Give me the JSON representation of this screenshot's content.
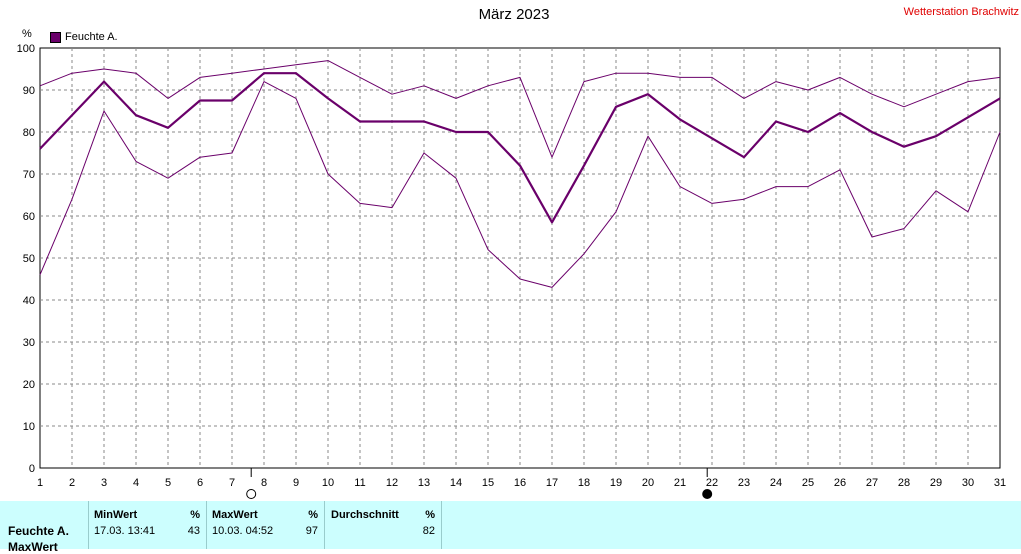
{
  "title": "März 2023",
  "station": "Wetterstation Brachwitz",
  "y_unit": "%",
  "legend": {
    "label": "Feuchte A.",
    "color": "#6a006a"
  },
  "moon_markers": [
    {
      "phase": "full-moon",
      "day": 7.6
    },
    {
      "phase": "new-moon",
      "day": 21.85
    }
  ],
  "chart_data": {
    "type": "line",
    "title": "März 2023",
    "ylabel": "%",
    "x": [
      1,
      2,
      3,
      4,
      5,
      6,
      7,
      8,
      9,
      10,
      11,
      12,
      13,
      14,
      15,
      16,
      17,
      18,
      19,
      20,
      21,
      22,
      23,
      24,
      25,
      26,
      27,
      28,
      29,
      30,
      31
    ],
    "ylim": [
      0,
      100
    ],
    "xlim": [
      1,
      31
    ],
    "yticks": [
      0,
      10,
      20,
      30,
      40,
      50,
      60,
      70,
      80,
      90,
      100
    ],
    "grid": true,
    "legend_position": "top-left",
    "series": [
      {
        "name": "Feuchte A.",
        "role": "mean",
        "values": [
          76,
          84,
          92,
          84,
          81,
          87.5,
          87.5,
          94,
          94,
          88,
          82.5,
          82.5,
          82.5,
          80,
          80,
          72,
          58.5,
          72,
          86,
          89,
          83,
          78.5,
          74,
          82.5,
          80,
          84.5,
          80,
          76.5,
          79,
          83.5,
          88
        ]
      },
      {
        "role": "max",
        "values": [
          91,
          94,
          95,
          94,
          88,
          93,
          94,
          95,
          96,
          97,
          93,
          89,
          91,
          88,
          91,
          93,
          74,
          92,
          94,
          94,
          93,
          93,
          88,
          92,
          90,
          93,
          89,
          86,
          89,
          92,
          93
        ]
      },
      {
        "role": "min",
        "values": [
          46,
          64,
          85,
          73,
          69,
          74,
          75,
          92,
          88,
          70,
          63,
          62,
          75,
          69,
          52,
          45,
          43,
          51,
          61,
          79,
          67,
          63,
          64,
          67,
          67,
          71,
          55,
          57,
          66,
          61,
          80
        ]
      }
    ]
  },
  "stats": {
    "row_label": "Feuchte A.",
    "row_label2": "MaxWert",
    "min_header": "MinWert",
    "min_unit": "%",
    "min_time": "17.03.  13:41",
    "min_value": "43",
    "max_header": "MaxWert",
    "max_unit": "%",
    "max_time": "10.03.  04:52",
    "max_value": "97",
    "avg_header": "Durchschnitt",
    "avg_unit": "%",
    "avg_value": "82"
  }
}
